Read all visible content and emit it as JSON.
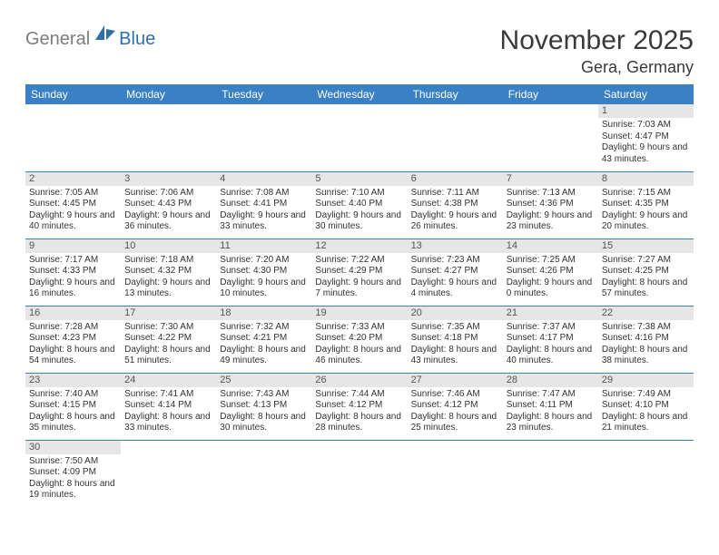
{
  "logo": {
    "text1": "General",
    "text2": "Blue"
  },
  "title": "November 2025",
  "location": "Gera, Germany",
  "colors": {
    "header_bg": "#3a80c4",
    "header_text": "#ffffff",
    "daynum_bg": "#e6e6e6",
    "row_border": "#3a80c4",
    "logo_gray": "#7d7d7d",
    "logo_blue": "#2f6fae"
  },
  "weekdays": [
    "Sunday",
    "Monday",
    "Tuesday",
    "Wednesday",
    "Thursday",
    "Friday",
    "Saturday"
  ],
  "weeks": [
    [
      null,
      null,
      null,
      null,
      null,
      null,
      {
        "n": "1",
        "sr": "7:03 AM",
        "ss": "4:47 PM",
        "dl": "9 hours and 43 minutes."
      }
    ],
    [
      {
        "n": "2",
        "sr": "7:05 AM",
        "ss": "4:45 PM",
        "dl": "9 hours and 40 minutes."
      },
      {
        "n": "3",
        "sr": "7:06 AM",
        "ss": "4:43 PM",
        "dl": "9 hours and 36 minutes."
      },
      {
        "n": "4",
        "sr": "7:08 AM",
        "ss": "4:41 PM",
        "dl": "9 hours and 33 minutes."
      },
      {
        "n": "5",
        "sr": "7:10 AM",
        "ss": "4:40 PM",
        "dl": "9 hours and 30 minutes."
      },
      {
        "n": "6",
        "sr": "7:11 AM",
        "ss": "4:38 PM",
        "dl": "9 hours and 26 minutes."
      },
      {
        "n": "7",
        "sr": "7:13 AM",
        "ss": "4:36 PM",
        "dl": "9 hours and 23 minutes."
      },
      {
        "n": "8",
        "sr": "7:15 AM",
        "ss": "4:35 PM",
        "dl": "9 hours and 20 minutes."
      }
    ],
    [
      {
        "n": "9",
        "sr": "7:17 AM",
        "ss": "4:33 PM",
        "dl": "9 hours and 16 minutes."
      },
      {
        "n": "10",
        "sr": "7:18 AM",
        "ss": "4:32 PM",
        "dl": "9 hours and 13 minutes."
      },
      {
        "n": "11",
        "sr": "7:20 AM",
        "ss": "4:30 PM",
        "dl": "9 hours and 10 minutes."
      },
      {
        "n": "12",
        "sr": "7:22 AM",
        "ss": "4:29 PM",
        "dl": "9 hours and 7 minutes."
      },
      {
        "n": "13",
        "sr": "7:23 AM",
        "ss": "4:27 PM",
        "dl": "9 hours and 4 minutes."
      },
      {
        "n": "14",
        "sr": "7:25 AM",
        "ss": "4:26 PM",
        "dl": "9 hours and 0 minutes."
      },
      {
        "n": "15",
        "sr": "7:27 AM",
        "ss": "4:25 PM",
        "dl": "8 hours and 57 minutes."
      }
    ],
    [
      {
        "n": "16",
        "sr": "7:28 AM",
        "ss": "4:23 PM",
        "dl": "8 hours and 54 minutes."
      },
      {
        "n": "17",
        "sr": "7:30 AM",
        "ss": "4:22 PM",
        "dl": "8 hours and 51 minutes."
      },
      {
        "n": "18",
        "sr": "7:32 AM",
        "ss": "4:21 PM",
        "dl": "8 hours and 49 minutes."
      },
      {
        "n": "19",
        "sr": "7:33 AM",
        "ss": "4:20 PM",
        "dl": "8 hours and 46 minutes."
      },
      {
        "n": "20",
        "sr": "7:35 AM",
        "ss": "4:18 PM",
        "dl": "8 hours and 43 minutes."
      },
      {
        "n": "21",
        "sr": "7:37 AM",
        "ss": "4:17 PM",
        "dl": "8 hours and 40 minutes."
      },
      {
        "n": "22",
        "sr": "7:38 AM",
        "ss": "4:16 PM",
        "dl": "8 hours and 38 minutes."
      }
    ],
    [
      {
        "n": "23",
        "sr": "7:40 AM",
        "ss": "4:15 PM",
        "dl": "8 hours and 35 minutes."
      },
      {
        "n": "24",
        "sr": "7:41 AM",
        "ss": "4:14 PM",
        "dl": "8 hours and 33 minutes."
      },
      {
        "n": "25",
        "sr": "7:43 AM",
        "ss": "4:13 PM",
        "dl": "8 hours and 30 minutes."
      },
      {
        "n": "26",
        "sr": "7:44 AM",
        "ss": "4:12 PM",
        "dl": "8 hours and 28 minutes."
      },
      {
        "n": "27",
        "sr": "7:46 AM",
        "ss": "4:12 PM",
        "dl": "8 hours and 25 minutes."
      },
      {
        "n": "28",
        "sr": "7:47 AM",
        "ss": "4:11 PM",
        "dl": "8 hours and 23 minutes."
      },
      {
        "n": "29",
        "sr": "7:49 AM",
        "ss": "4:10 PM",
        "dl": "8 hours and 21 minutes."
      }
    ],
    [
      {
        "n": "30",
        "sr": "7:50 AM",
        "ss": "4:09 PM",
        "dl": "8 hours and 19 minutes."
      },
      null,
      null,
      null,
      null,
      null,
      null
    ]
  ],
  "labels": {
    "sunrise": "Sunrise:",
    "sunset": "Sunset:",
    "daylight": "Daylight:"
  }
}
